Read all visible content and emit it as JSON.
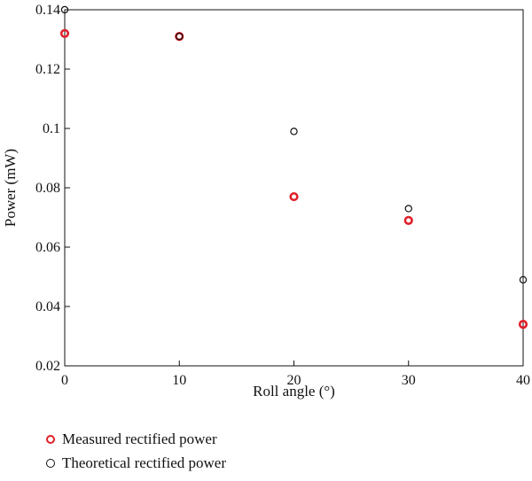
{
  "chart_data": {
    "type": "scatter",
    "xlabel": "Roll angle (°)",
    "ylabel": "Power (mW)",
    "xlim": [
      0,
      40
    ],
    "ylim": [
      0.02,
      0.14
    ],
    "x_ticks": [
      0,
      10,
      20,
      30,
      40
    ],
    "x_tick_labels": [
      "0",
      "10",
      "20",
      "30",
      "40"
    ],
    "y_ticks": [
      0.02,
      0.04,
      0.06,
      0.08,
      0.1,
      0.12,
      0.14
    ],
    "y_tick_labels": [
      "0.02",
      "0.04",
      "0.06",
      "0.08",
      "0.1",
      "0.12",
      "0.14"
    ],
    "grid": false,
    "legend_position": "bottom-left, below plot",
    "series": [
      {
        "name": "Measured rectified power",
        "color": "#e0202a",
        "marker": "open-circle-thick",
        "x": [
          0,
          10,
          20,
          30,
          40
        ],
        "y": [
          0.132,
          0.131,
          0.077,
          0.069,
          0.034
        ]
      },
      {
        "name": "Theoretical rectified power",
        "color": "#111111",
        "marker": "open-circle",
        "x": [
          0,
          10,
          20,
          30,
          40
        ],
        "y": [
          0.14,
          0.131,
          0.099,
          0.073,
          0.049
        ]
      }
    ]
  }
}
